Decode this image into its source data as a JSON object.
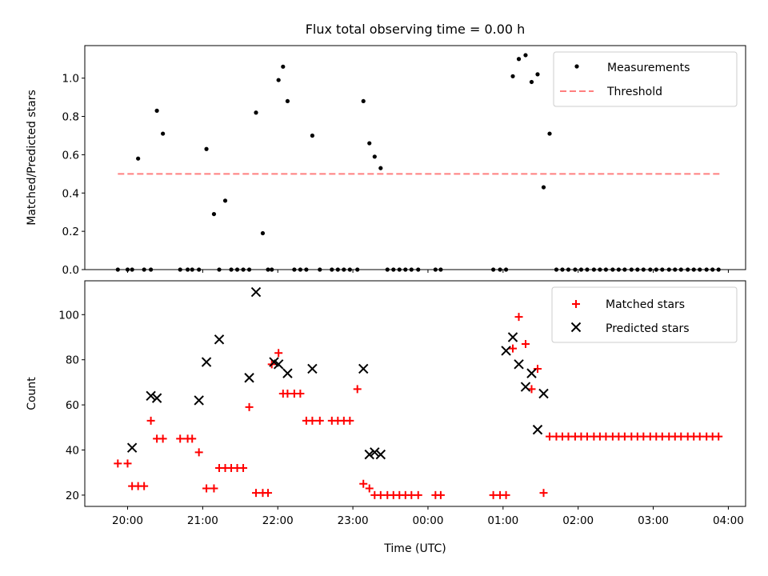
{
  "figure": {
    "title": "Flux total observing time = 0.00 h",
    "xlabel": "Time (UTC)",
    "x_tick_labels": [
      "20:00",
      "21:00",
      "22:00",
      "23:00",
      "00:00",
      "01:00",
      "02:00",
      "03:00",
      "04:00"
    ],
    "colors": {
      "measurement": "#000000",
      "threshold": "#ff7f7f",
      "matched": "#ff0000",
      "predicted": "#000000"
    }
  },
  "chart_data": [
    {
      "type": "scatter",
      "title": "Flux total observing time = 0.00 h",
      "xlabel": "",
      "ylabel": "Matched/Predicted stars",
      "x_unit": "hours since 20:00 UTC",
      "xlim": [
        -0.57,
        8.23
      ],
      "ylim": [
        0,
        1.17
      ],
      "y_ticks": [
        0.0,
        0.2,
        0.4,
        0.6,
        0.8,
        1.0
      ],
      "y_tick_labels": [
        "0.0",
        "0.2",
        "0.4",
        "0.6",
        "0.8",
        "1.0"
      ],
      "legend": {
        "location": "top-right",
        "entries": [
          "Measurements",
          "Threshold"
        ]
      },
      "series": [
        {
          "name": "Measurements",
          "marker": "dot",
          "x": [
            -0.13,
            0.0,
            0.06,
            0.14,
            0.22,
            0.31,
            0.39,
            0.47,
            0.7,
            0.8,
            0.86,
            0.95,
            1.05,
            1.15,
            1.22,
            1.3,
            1.38,
            1.46,
            1.54,
            1.62,
            1.71,
            1.8,
            1.87,
            1.92,
            2.01,
            2.07,
            2.13,
            2.22,
            2.3,
            2.38,
            2.46,
            2.56,
            2.72,
            2.8,
            2.88,
            2.96,
            3.06,
            3.14,
            3.22,
            3.29,
            3.37,
            3.46,
            3.54,
            3.62,
            3.7,
            3.78,
            3.87,
            4.1,
            4.17,
            4.87,
            4.96,
            5.04,
            5.13,
            5.21,
            5.3,
            5.38,
            5.46,
            5.54,
            5.62,
            5.71,
            5.79,
            5.87,
            5.96,
            6.04,
            6.12,
            6.21,
            6.29,
            6.37,
            6.46,
            6.54,
            6.62,
            6.71,
            6.79,
            6.87,
            6.96,
            7.04,
            7.12,
            7.21,
            7.29,
            7.37,
            7.46,
            7.54,
            7.62,
            7.71,
            7.79,
            7.87
          ],
          "y": [
            0,
            0,
            0,
            0.58,
            0,
            0,
            0.83,
            0.71,
            0,
            0,
            0,
            0,
            0.63,
            0.29,
            0,
            0.36,
            0,
            0,
            0,
            0,
            0.82,
            0.19,
            0,
            0,
            0.99,
            1.06,
            0.88,
            0,
            0,
            0,
            0.7,
            0,
            0,
            0,
            0,
            0,
            0,
            0.88,
            0.66,
            0.59,
            0.53,
            0,
            0,
            0,
            0,
            0,
            0,
            0,
            0,
            0,
            0,
            0,
            1.01,
            1.1,
            1.12,
            0.98,
            1.02,
            0.43,
            0.71,
            0,
            0,
            0,
            0,
            0,
            0,
            0,
            0,
            0,
            0,
            0,
            0,
            0,
            0,
            0,
            0,
            0,
            0,
            0,
            0,
            0,
            0,
            0,
            0,
            0,
            0,
            0
          ]
        },
        {
          "name": "Threshold",
          "marker": "dashed-line",
          "x": [
            -0.13,
            7.9
          ],
          "y": [
            0.5,
            0.5
          ]
        }
      ]
    },
    {
      "type": "scatter",
      "ylabel": "Count",
      "xlabel": "Time (UTC)",
      "x_unit": "hours since 20:00 UTC",
      "xlim": [
        -0.57,
        8.23
      ],
      "ylim": [
        15,
        115
      ],
      "y_ticks": [
        20,
        40,
        60,
        80,
        100
      ],
      "y_tick_labels": [
        "20",
        "40",
        "60",
        "80",
        "100"
      ],
      "legend": {
        "location": "top-right",
        "entries": [
          "Matched stars",
          "Predicted stars"
        ]
      },
      "series": [
        {
          "name": "Matched stars",
          "marker": "plus",
          "x": [
            -0.13,
            0.0,
            0.06,
            0.14,
            0.22,
            0.31,
            0.39,
            0.47,
            0.7,
            0.8,
            0.86,
            0.95,
            1.05,
            1.15,
            1.22,
            1.3,
            1.38,
            1.46,
            1.54,
            1.62,
            1.71,
            1.8,
            1.87,
            1.92,
            2.01,
            2.07,
            2.13,
            2.22,
            2.3,
            2.38,
            2.46,
            2.56,
            2.72,
            2.8,
            2.88,
            2.96,
            3.06,
            3.14,
            3.22,
            3.29,
            3.37,
            3.46,
            3.54,
            3.62,
            3.7,
            3.78,
            3.87,
            4.1,
            4.17,
            4.87,
            4.96,
            5.04,
            5.13,
            5.21,
            5.3,
            5.38,
            5.46,
            5.54,
            5.62,
            5.71,
            5.79,
            5.87,
            5.96,
            6.04,
            6.12,
            6.21,
            6.29,
            6.37,
            6.46,
            6.54,
            6.62,
            6.71,
            6.79,
            6.87,
            6.96,
            7.04,
            7.12,
            7.21,
            7.29,
            7.37,
            7.46,
            7.54,
            7.62,
            7.71,
            7.79,
            7.87
          ],
          "y": [
            34,
            34,
            24,
            24,
            24,
            53,
            45,
            45,
            45,
            45,
            45,
            39,
            23,
            23,
            32,
            32,
            32,
            32,
            32,
            59,
            21,
            21,
            21,
            78,
            83,
            65,
            65,
            65,
            65,
            53,
            53,
            53,
            53,
            53,
            53,
            53,
            67,
            25,
            23,
            20,
            20,
            20,
            20,
            20,
            20,
            20,
            20,
            20,
            20,
            20,
            20,
            20,
            85,
            99,
            87,
            67,
            76,
            21,
            46,
            46,
            46,
            46,
            46,
            46,
            46,
            46,
            46,
            46,
            46,
            46,
            46,
            46,
            46,
            46,
            46,
            46,
            46,
            46,
            46,
            46,
            46,
            46,
            46,
            46,
            46,
            46
          ]
        },
        {
          "name": "Predicted stars",
          "marker": "x",
          "x": [
            0.06,
            0.31,
            0.39,
            0.95,
            1.05,
            1.22,
            1.62,
            1.71,
            1.95,
            2.01,
            2.13,
            2.46,
            3.14,
            3.22,
            3.29,
            3.37,
            5.04,
            5.13,
            5.21,
            5.3,
            5.38,
            5.46,
            5.54
          ],
          "y": [
            41,
            64,
            63,
            62,
            79,
            89,
            72,
            110,
            79,
            78,
            74,
            76,
            76,
            38,
            39,
            38,
            84,
            90,
            78,
            68,
            74,
            49,
            65
          ]
        }
      ]
    }
  ]
}
